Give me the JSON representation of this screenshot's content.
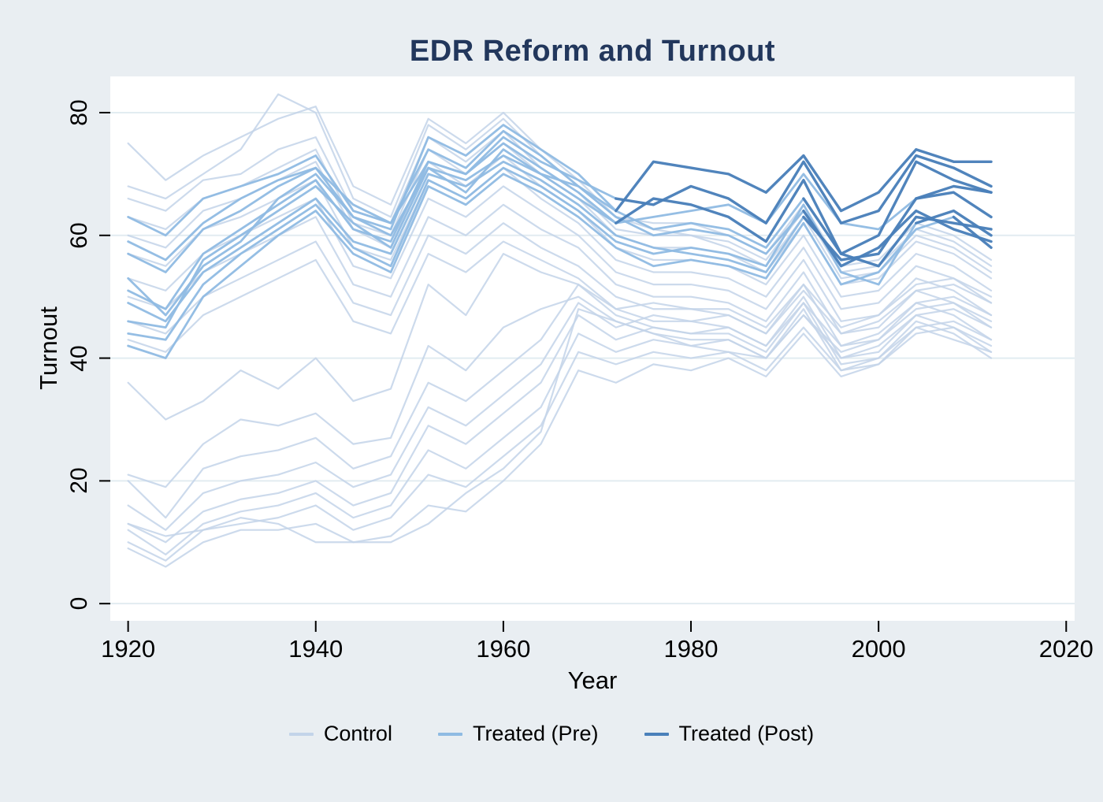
{
  "title": "EDR Reform and Turnout",
  "colors": {
    "background": "#e9eef2",
    "plot_background": "#ffffff",
    "gridline": "#e2ecf1",
    "title": "#22375c",
    "tick": "#000000",
    "control": "#c3d4e9",
    "treated_pre": "#8fbbe3",
    "treated_post": "#4a80ba"
  },
  "chart_data": {
    "type": "line",
    "title": "EDR Reform and Turnout",
    "xlabel": "Year",
    "ylabel": "Turnout",
    "xlim": [
      1918.1,
      2020.9
    ],
    "ylim": [
      -2.8,
      85.9
    ],
    "xticks": [
      1920,
      1940,
      1960,
      1980,
      2000,
      2020
    ],
    "yticks": [
      0,
      20,
      40,
      60,
      80
    ],
    "grid": "horizontal-only",
    "legend_position": "bottom",
    "legend": [
      {
        "label": "Control",
        "color": "#c3d4e9"
      },
      {
        "label": "Treated (Pre)",
        "color": "#8fbbe3"
      },
      {
        "label": "Treated (Post)",
        "color": "#4a80ba"
      }
    ],
    "x": [
      1920,
      1924,
      1928,
      1932,
      1936,
      1940,
      1944,
      1948,
      1952,
      1956,
      1960,
      1964,
      1968,
      1972,
      1976,
      1980,
      1984,
      1988,
      1992,
      1996,
      2000,
      2004,
      2008,
      2012
    ],
    "series": [
      {
        "id": "c01",
        "group": "control",
        "values": [
          75,
          69,
          73,
          76,
          79,
          81,
          68,
          65,
          79,
          75,
          80,
          74,
          69,
          63,
          62,
          62,
          60,
          57,
          65,
          55,
          56,
          62,
          60,
          56
        ]
      },
      {
        "id": "c02",
        "group": "control",
        "values": [
          68,
          66,
          70,
          74,
          83,
          80,
          66,
          63,
          78,
          74,
          79,
          73,
          68,
          63,
          61,
          60,
          59,
          56,
          64,
          54,
          55,
          61,
          59,
          55
        ]
      },
      {
        "id": "c03",
        "group": "control",
        "values": [
          66,
          64,
          69,
          70,
          74,
          76,
          64,
          62,
          76,
          72,
          77,
          71,
          67,
          61,
          60,
          60,
          58,
          55,
          63,
          53,
          54,
          60,
          58,
          54
        ]
      },
      {
        "id": "c04",
        "group": "control",
        "values": [
          63,
          61,
          66,
          68,
          71,
          74,
          62,
          60,
          74,
          70,
          75,
          70,
          66,
          60,
          58,
          58,
          57,
          54,
          62,
          52,
          53,
          59,
          57,
          53
        ]
      },
      {
        "id": "c05",
        "group": "control",
        "values": [
          60,
          58,
          64,
          66,
          69,
          72,
          61,
          58,
          72,
          68,
          73,
          68,
          64,
          58,
          56,
          56,
          55,
          52,
          60,
          50,
          51,
          57,
          55,
          51
        ]
      },
      {
        "id": "c06",
        "group": "control",
        "values": [
          57,
          55,
          61,
          63,
          66,
          69,
          58,
          56,
          69,
          66,
          71,
          66,
          62,
          56,
          54,
          54,
          53,
          50,
          58,
          48,
          49,
          55,
          53,
          49
        ]
      },
      {
        "id": "c07",
        "group": "control",
        "values": [
          53,
          51,
          57,
          60,
          63,
          66,
          55,
          53,
          66,
          63,
          68,
          64,
          60,
          54,
          52,
          52,
          51,
          48,
          56,
          46,
          47,
          53,
          51,
          47
        ]
      },
      {
        "id": "c08",
        "group": "control",
        "values": [
          50,
          48,
          54,
          57,
          60,
          63,
          52,
          50,
          63,
          60,
          65,
          61,
          58,
          52,
          50,
          50,
          49,
          46,
          54,
          44,
          45,
          51,
          49,
          45
        ]
      },
      {
        "id": "c09",
        "group": "control",
        "values": [
          46,
          44,
          50,
          53,
          56,
          59,
          49,
          47,
          60,
          57,
          62,
          58,
          55,
          50,
          48,
          48,
          47,
          44,
          52,
          42,
          43,
          49,
          47,
          43
        ]
      },
      {
        "id": "c10",
        "group": "control",
        "values": [
          43,
          41,
          47,
          50,
          53,
          56,
          46,
          44,
          57,
          54,
          59,
          56,
          53,
          48,
          46,
          46,
          45,
          42,
          50,
          40,
          41,
          47,
          45,
          41
        ]
      },
      {
        "id": "c11",
        "group": "control",
        "values": [
          36,
          30,
          33,
          38,
          35,
          40,
          33,
          35,
          52,
          47,
          57,
          54,
          52,
          47,
          45,
          44,
          44,
          41,
          49,
          39,
          40,
          46,
          44,
          40
        ]
      },
      {
        "id": "c12",
        "group": "control",
        "values": [
          21,
          19,
          26,
          30,
          29,
          31,
          26,
          27,
          42,
          38,
          45,
          48,
          50,
          46,
          44,
          43,
          43,
          40,
          48,
          38,
          39,
          45,
          43,
          41
        ]
      },
      {
        "id": "c13",
        "group": "control",
        "values": [
          20,
          14,
          22,
          24,
          25,
          27,
          22,
          24,
          36,
          33,
          38,
          43,
          52,
          48,
          49,
          48,
          48,
          45,
          52,
          45,
          47,
          52,
          53,
          50
        ]
      },
      {
        "id": "c14",
        "group": "control",
        "values": [
          16,
          12,
          18,
          20,
          21,
          23,
          19,
          21,
          32,
          29,
          34,
          39,
          49,
          45,
          47,
          46,
          47,
          44,
          51,
          44,
          46,
          51,
          52,
          49
        ]
      },
      {
        "id": "c15",
        "group": "control",
        "values": [
          13,
          10,
          15,
          17,
          18,
          20,
          16,
          18,
          29,
          26,
          31,
          36,
          47,
          43,
          45,
          44,
          45,
          42,
          49,
          42,
          44,
          49,
          50,
          47
        ]
      },
      {
        "id": "c16",
        "group": "control",
        "values": [
          12,
          8,
          13,
          15,
          16,
          18,
          14,
          16,
          25,
          22,
          27,
          32,
          44,
          41,
          43,
          42,
          43,
          40,
          47,
          40,
          42,
          47,
          48,
          45
        ]
      },
      {
        "id": "c17",
        "group": "control",
        "values": [
          10,
          7,
          12,
          13,
          14,
          16,
          12,
          14,
          21,
          19,
          24,
          29,
          41,
          39,
          41,
          40,
          41,
          38,
          45,
          38,
          40,
          45,
          46,
          43
        ]
      },
      {
        "id": "c18",
        "group": "control",
        "values": [
          9,
          6,
          10,
          12,
          12,
          13,
          10,
          11,
          16,
          15,
          20,
          26,
          38,
          36,
          39,
          38,
          40,
          37,
          44,
          37,
          39,
          44,
          45,
          42
        ]
      },
      {
        "id": "c19",
        "group": "control",
        "values": [
          13,
          11,
          12,
          14,
          13,
          10,
          10,
          10,
          13,
          18,
          22,
          28,
          48,
          46,
          44,
          42,
          41,
          40,
          47,
          41,
          43,
          48,
          49,
          46
        ]
      },
      {
        "id": "t1",
        "group": "treated",
        "post_from": 1976,
        "values": [
          46,
          45,
          56,
          60,
          64,
          68,
          62,
          58,
          71,
          69,
          73,
          70,
          68,
          64,
          72,
          71,
          70,
          67,
          73,
          64,
          67,
          74,
          72,
          72
        ]
      },
      {
        "id": "t2",
        "group": "treated",
        "post_from": 1976,
        "values": [
          59,
          56,
          62,
          66,
          69,
          71,
          65,
          62,
          72,
          70,
          76,
          72,
          69,
          66,
          65,
          68,
          66,
          62,
          72,
          62,
          64,
          73,
          71,
          68
        ]
      },
      {
        "id": "t3",
        "group": "treated",
        "post_from": 1976,
        "values": [
          53,
          47,
          55,
          59,
          66,
          70,
          63,
          60,
          71,
          67,
          74,
          70,
          66,
          62,
          66,
          65,
          63,
          59,
          69,
          57,
          60,
          72,
          69,
          67
        ]
      },
      {
        "id": "t4",
        "group": "treated",
        "post_from": 1996,
        "values": [
          63,
          60,
          66,
          68,
          70,
          73,
          64,
          62,
          74,
          71,
          77,
          73,
          68,
          63,
          60,
          61,
          60,
          57,
          64,
          55,
          58,
          64,
          61,
          59
        ]
      },
      {
        "id": "t5",
        "group": "treated",
        "post_from": 1996,
        "values": [
          57,
          54,
          61,
          64,
          68,
          71,
          63,
          61,
          76,
          73,
          78,
          74,
          70,
          64,
          61,
          62,
          61,
          58,
          66,
          57,
          55,
          63,
          62,
          61
        ]
      },
      {
        "id": "t6",
        "group": "treated",
        "post_from": 1996,
        "values": [
          49,
          46,
          54,
          58,
          62,
          66,
          59,
          57,
          70,
          68,
          72,
          69,
          65,
          60,
          58,
          57,
          56,
          54,
          63,
          56,
          57,
          66,
          68,
          67
        ]
      },
      {
        "id": "t7",
        "group": "treated",
        "post_from": 2008,
        "values": [
          51,
          48,
          57,
          61,
          65,
          69,
          61,
          59,
          72,
          70,
          75,
          71,
          67,
          62,
          63,
          64,
          65,
          62,
          70,
          62,
          61,
          66,
          67,
          63
        ]
      },
      {
        "id": "t8",
        "group": "treated",
        "post_from": 2008,
        "values": [
          44,
          43,
          52,
          57,
          61,
          65,
          58,
          55,
          69,
          66,
          71,
          68,
          64,
          59,
          57,
          58,
          57,
          55,
          65,
          54,
          52,
          62,
          64,
          60
        ]
      },
      {
        "id": "t9",
        "group": "treated",
        "post_from": 2012,
        "values": [
          42,
          40,
          50,
          55,
          60,
          64,
          57,
          54,
          68,
          65,
          70,
          67,
          63,
          58,
          55,
          56,
          55,
          53,
          62,
          52,
          54,
          61,
          63,
          58
        ]
      }
    ]
  }
}
